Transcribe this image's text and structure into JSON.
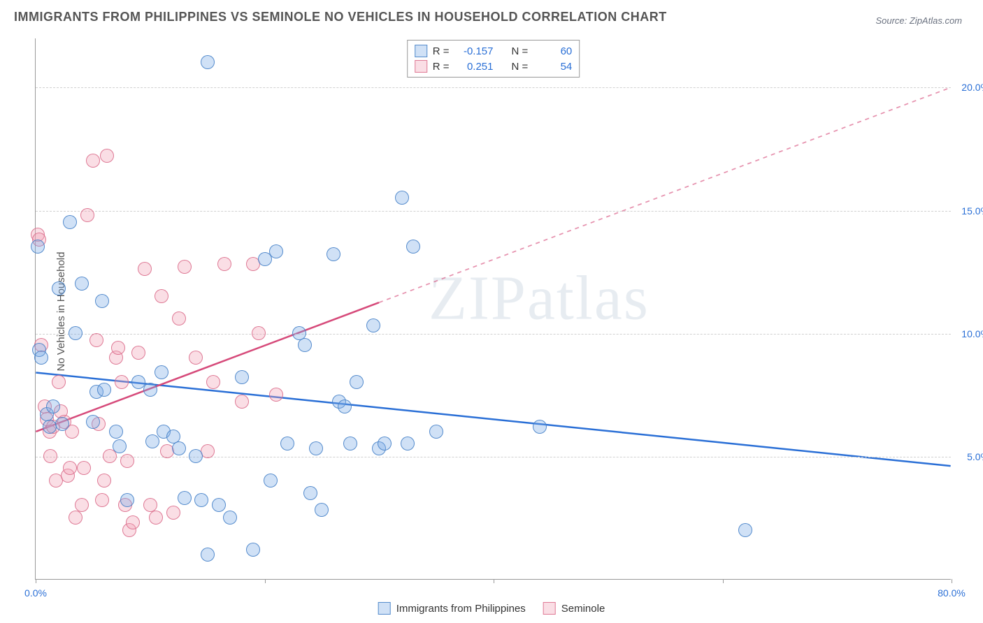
{
  "title": "IMMIGRANTS FROM PHILIPPINES VS SEMINOLE NO VEHICLES IN HOUSEHOLD CORRELATION CHART",
  "source": "Source: ZipAtlas.com",
  "y_axis_label": "No Vehicles in Household",
  "watermark": "ZIPatlas",
  "chart": {
    "type": "scatter",
    "x_range": [
      0,
      80
    ],
    "y_range": [
      0,
      22
    ],
    "x_ticks": [
      0,
      20,
      40,
      60,
      80
    ],
    "x_tick_labels": {
      "0": "0.0%",
      "80": "80.0%"
    },
    "y_gridlines": [
      5,
      10,
      15,
      20
    ],
    "y_tick_labels": {
      "5": "5.0%",
      "10": "10.0%",
      "15": "15.0%",
      "20": "20.0%"
    },
    "grid_color": "#d0d0d0",
    "axis_color": "#999999",
    "background": "#ffffff",
    "point_radius": 10
  },
  "series": {
    "blue": {
      "name": "Immigrants from Philippines",
      "fill": "rgba(120,170,230,0.35)",
      "stroke": "rgba(70,130,200,0.9)",
      "r_value": "-0.157",
      "n_value": "60",
      "trend": {
        "x1": 0,
        "y1": 8.4,
        "x2": 80,
        "y2": 4.6,
        "solid_until_x": 80,
        "color": "#2a6fd6",
        "width": 2.5
      },
      "points": [
        [
          0.2,
          13.5
        ],
        [
          0.3,
          9.3
        ],
        [
          0.5,
          9.0
        ],
        [
          1.0,
          6.7
        ],
        [
          1.2,
          6.2
        ],
        [
          1.5,
          7.0
        ],
        [
          2.0,
          11.8
        ],
        [
          2.3,
          6.3
        ],
        [
          3.0,
          14.5
        ],
        [
          3.5,
          10.0
        ],
        [
          4.0,
          12.0
        ],
        [
          5.0,
          6.4
        ],
        [
          5.3,
          7.6
        ],
        [
          5.8,
          11.3
        ],
        [
          6.0,
          7.7
        ],
        [
          7.0,
          6.0
        ],
        [
          7.3,
          5.4
        ],
        [
          8.0,
          3.2
        ],
        [
          9.0,
          8.0
        ],
        [
          10.0,
          7.7
        ],
        [
          10.2,
          5.6
        ],
        [
          11.0,
          8.4
        ],
        [
          11.2,
          6.0
        ],
        [
          12.0,
          5.8
        ],
        [
          12.5,
          5.3
        ],
        [
          13.0,
          3.3
        ],
        [
          14.0,
          5.0
        ],
        [
          14.5,
          3.2
        ],
        [
          15.0,
          21.0
        ],
        [
          15.0,
          1.0
        ],
        [
          16.0,
          3.0
        ],
        [
          17.0,
          2.5
        ],
        [
          18.0,
          8.2
        ],
        [
          19.0,
          1.2
        ],
        [
          20.0,
          13.0
        ],
        [
          20.5,
          4.0
        ],
        [
          21.0,
          13.3
        ],
        [
          22.0,
          5.5
        ],
        [
          23.0,
          10.0
        ],
        [
          23.5,
          9.5
        ],
        [
          24.0,
          3.5
        ],
        [
          24.5,
          5.3
        ],
        [
          25.0,
          2.8
        ],
        [
          26.0,
          13.2
        ],
        [
          26.5,
          7.2
        ],
        [
          27.0,
          7.0
        ],
        [
          27.5,
          5.5
        ],
        [
          28.0,
          8.0
        ],
        [
          29.5,
          10.3
        ],
        [
          30.0,
          5.3
        ],
        [
          30.5,
          5.5
        ],
        [
          32.0,
          15.5
        ],
        [
          32.5,
          5.5
        ],
        [
          33.0,
          13.5
        ],
        [
          35.0,
          6.0
        ],
        [
          44.0,
          6.2
        ],
        [
          62.0,
          2.0
        ]
      ]
    },
    "pink": {
      "name": "Seminole",
      "fill": "rgba(240,160,180,0.35)",
      "stroke": "rgba(220,110,140,0.9)",
      "r_value": "0.251",
      "n_value": "54",
      "trend": {
        "x1": 0,
        "y1": 6.0,
        "x2": 80,
        "y2": 20.0,
        "solid_until_x": 30,
        "color": "#d64a7a",
        "width": 2.5
      },
      "points": [
        [
          0.2,
          14.0
        ],
        [
          0.3,
          13.8
        ],
        [
          0.5,
          9.5
        ],
        [
          0.8,
          7.0
        ],
        [
          1.0,
          6.5
        ],
        [
          1.2,
          6.0
        ],
        [
          1.3,
          5.0
        ],
        [
          1.5,
          6.2
        ],
        [
          1.8,
          4.0
        ],
        [
          2.0,
          8.0
        ],
        [
          2.2,
          6.8
        ],
        [
          2.5,
          6.4
        ],
        [
          2.8,
          4.2
        ],
        [
          3.0,
          4.5
        ],
        [
          3.2,
          6.0
        ],
        [
          3.5,
          2.5
        ],
        [
          4.0,
          3.0
        ],
        [
          4.2,
          4.5
        ],
        [
          4.5,
          14.8
        ],
        [
          5.0,
          17.0
        ],
        [
          5.3,
          9.7
        ],
        [
          5.5,
          6.3
        ],
        [
          5.8,
          3.2
        ],
        [
          6.0,
          4.0
        ],
        [
          6.2,
          17.2
        ],
        [
          6.5,
          5.0
        ],
        [
          7.0,
          9.0
        ],
        [
          7.2,
          9.4
        ],
        [
          7.5,
          8.0
        ],
        [
          7.8,
          3.0
        ],
        [
          8.0,
          4.8
        ],
        [
          8.2,
          2.0
        ],
        [
          8.5,
          2.3
        ],
        [
          9.0,
          9.2
        ],
        [
          9.5,
          12.6
        ],
        [
          10.0,
          3.0
        ],
        [
          10.5,
          2.5
        ],
        [
          11.0,
          11.5
        ],
        [
          11.5,
          5.2
        ],
        [
          12.0,
          2.7
        ],
        [
          12.5,
          10.6
        ],
        [
          13.0,
          12.7
        ],
        [
          14.0,
          9.0
        ],
        [
          15.0,
          5.2
        ],
        [
          15.5,
          8.0
        ],
        [
          16.5,
          12.8
        ],
        [
          18.0,
          7.2
        ],
        [
          19.0,
          12.8
        ],
        [
          19.5,
          10.0
        ],
        [
          21.0,
          7.5
        ]
      ]
    }
  },
  "legend_top": {
    "r_label": "R =",
    "n_label": "N ="
  },
  "legend_bottom": {
    "items": [
      {
        "color": "blue",
        "label": "Immigrants from Philippines"
      },
      {
        "color": "pink",
        "label": "Seminole"
      }
    ]
  }
}
